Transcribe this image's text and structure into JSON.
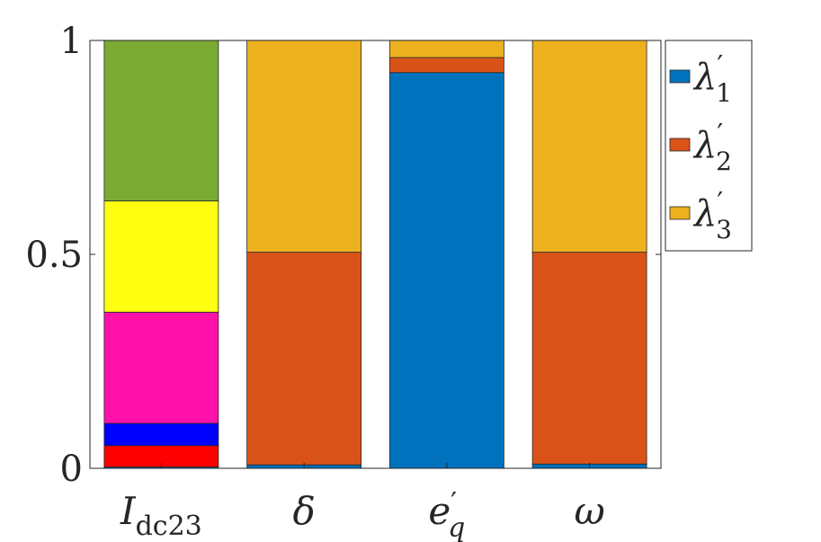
{
  "chart_data": {
    "type": "bar",
    "stacked": true,
    "normalized": true,
    "title": "",
    "xlabel": "",
    "ylabel": "",
    "ylim": [
      0,
      1
    ],
    "yticks": [
      0,
      0.5,
      1
    ],
    "ytick_labels": [
      "0",
      "0.5",
      "1"
    ],
    "grid": false,
    "legend_placement": "outside-top-right",
    "categories": [
      {
        "label": "I",
        "sub": "dc23",
        "prime": ""
      },
      {
        "label": "δ",
        "sub": "",
        "prime": ""
      },
      {
        "label": "e",
        "sub": "q",
        "prime": "′"
      },
      {
        "label": "ω",
        "sub": "",
        "prime": ""
      }
    ],
    "stacks": [
      {
        "category": "I_dc23",
        "segments": [
          {
            "value": 0.003,
            "color": "#0072BD"
          },
          {
            "value": 0.05,
            "color": "#FF0000"
          },
          {
            "value": 0.052,
            "color": "#0000FF"
          },
          {
            "value": 0.26,
            "color": "#FF11AA"
          },
          {
            "value": 0.26,
            "color": "#FFFF11"
          },
          {
            "value": 0.375,
            "color": "#7BAB33"
          }
        ]
      },
      {
        "category": "δ",
        "segments": [
          {
            "value": 0.008,
            "color": "#0072BD"
          },
          {
            "value": 0.497,
            "color": "#D95319"
          },
          {
            "value": 0.495,
            "color": "#EDB120"
          }
        ]
      },
      {
        "category": "e'_q",
        "segments": [
          {
            "value": 0.925,
            "color": "#0072BD"
          },
          {
            "value": 0.035,
            "color": "#D95319"
          },
          {
            "value": 0.04,
            "color": "#EDB120"
          }
        ]
      },
      {
        "category": "ω",
        "segments": [
          {
            "value": 0.01,
            "color": "#0072BD"
          },
          {
            "value": 0.495,
            "color": "#D95319"
          },
          {
            "value": 0.495,
            "color": "#EDB120"
          }
        ]
      }
    ],
    "legend": [
      {
        "symbol": "λ",
        "prime": "′",
        "sub": "1",
        "color": "#0072BD"
      },
      {
        "symbol": "λ",
        "prime": "′",
        "sub": "2",
        "color": "#D95319"
      },
      {
        "symbol": "λ",
        "prime": "′",
        "sub": "3",
        "color": "#EDB120"
      }
    ]
  }
}
